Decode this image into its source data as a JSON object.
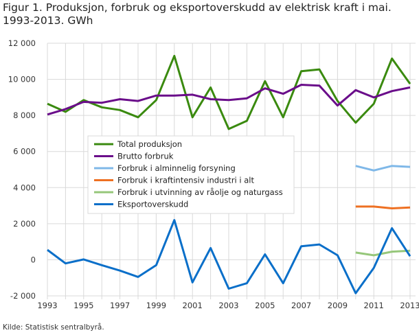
{
  "chart_data": {
    "type": "line",
    "title": "Figur 1. Produksjon, forbruk og eksportoverskudd av elektrisk kraft i mai. 1993-2013. GWh",
    "source": "Kilde: Statistisk sentralbyrå.",
    "x": [
      1993,
      1994,
      1995,
      1996,
      1997,
      1998,
      1999,
      2000,
      2001,
      2002,
      2003,
      2004,
      2005,
      2006,
      2007,
      2008,
      2009,
      2010,
      2011,
      2012,
      2013
    ],
    "x_tick_labels": [
      "1993",
      "1995",
      "1997",
      "1999",
      "2001",
      "2003",
      "2005",
      "2007",
      "2009",
      "2011",
      "2013"
    ],
    "y_tick_labels": [
      "-2 000",
      "0",
      "2 000",
      "4 000",
      "6 000",
      "8 000",
      "10 000",
      "12 000"
    ],
    "ylim": [
      -2000,
      12000
    ],
    "grid": true,
    "legend_position": "center-left",
    "series": [
      {
        "name": "Total produksjon",
        "color": "#3a8a0f",
        "values": [
          8650,
          8200,
          8850,
          8450,
          8300,
          7900,
          8850,
          11300,
          7900,
          9550,
          7250,
          7700,
          9900,
          7900,
          10450,
          10550,
          8800,
          7600,
          8650,
          11150,
          9750
        ]
      },
      {
        "name": "Brutto forbruk",
        "color": "#6a0d8a",
        "values": [
          8050,
          8350,
          8750,
          8700,
          8900,
          8800,
          9100,
          9100,
          9150,
          8900,
          8850,
          8950,
          9500,
          9200,
          9700,
          9650,
          8550,
          9400,
          9000,
          9350,
          9550
        ]
      },
      {
        "name": "Forbruk i alminnelig forsyning",
        "color": "#7fb8e8",
        "values": [
          null,
          null,
          null,
          null,
          null,
          null,
          null,
          null,
          null,
          null,
          null,
          null,
          null,
          null,
          null,
          null,
          null,
          5200,
          4950,
          5200,
          5150
        ]
      },
      {
        "name": "Forbruk i kraftintensiv industri i alt",
        "color": "#ee7022",
        "values": [
          null,
          null,
          null,
          null,
          null,
          null,
          null,
          null,
          null,
          null,
          null,
          null,
          null,
          null,
          null,
          null,
          null,
          2950,
          2950,
          2850,
          2900
        ]
      },
      {
        "name": "Forbruk i utvinning av råolje og naturgass",
        "color": "#96c77a",
        "values": [
          null,
          null,
          null,
          null,
          null,
          null,
          null,
          null,
          null,
          null,
          null,
          null,
          null,
          null,
          null,
          null,
          null,
          400,
          250,
          450,
          500
        ]
      },
      {
        "name": "Eksportoverskudd",
        "color": "#0a6fc9",
        "values": [
          550,
          -200,
          20,
          -300,
          -600,
          -950,
          -300,
          2200,
          -1250,
          650,
          -1600,
          -1300,
          300,
          -1300,
          750,
          850,
          250,
          -1850,
          -450,
          1750,
          200
        ]
      }
    ]
  }
}
